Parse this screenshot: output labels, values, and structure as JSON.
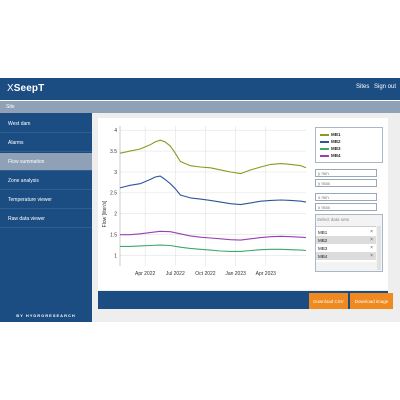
{
  "header": {
    "logo_prefix": "X",
    "logo_main": "SeepT",
    "nav": [
      {
        "label": "Sites"
      },
      {
        "label": "Sign out"
      }
    ]
  },
  "subheader": {
    "title": "Site"
  },
  "sidebar": {
    "items": [
      {
        "label": "West dam"
      },
      {
        "label": "Alarms"
      },
      {
        "label": "Flow summation",
        "active": true
      },
      {
        "label": "Zone analysis"
      },
      {
        "label": "Temperature viewer"
      },
      {
        "label": "Raw data viewer"
      }
    ],
    "brand": "BY HYDRORESEARCH"
  },
  "legend": {
    "items": [
      {
        "name": "MB1",
        "color": "#8a9a1e"
      },
      {
        "name": "MB2",
        "color": "#2f5597"
      },
      {
        "name": "MB3",
        "color": "#3fa86a"
      },
      {
        "name": "MB4",
        "color": "#9b3fb5"
      }
    ]
  },
  "controls": {
    "y_min_placeholder": "y min",
    "y_max_placeholder": "y max",
    "x_min_placeholder": "x min",
    "x_max_placeholder": "x max",
    "datasets_placeholder": "Select data sets",
    "selected": [
      {
        "name": "MB1",
        "remove": "×"
      },
      {
        "name": "MB2",
        "remove": "×",
        "highlighted": true
      },
      {
        "name": "MB3",
        "remove": "×"
      },
      {
        "name": "MB4",
        "remove": "×",
        "highlighted": true
      }
    ]
  },
  "actions": {
    "download_csv": "Download CSV",
    "download_image": "Download image"
  },
  "chart_data": {
    "type": "line",
    "ylabel": "Flow [liter/s]",
    "xlabel": "",
    "ylim": [
      0.75,
      4.1
    ],
    "xlim": [
      -2.5,
      16
    ],
    "yticks": [
      1,
      1.5,
      2,
      2.5,
      3,
      3.5,
      4
    ],
    "xticks": [
      {
        "x": 0,
        "label": "Apr 2022"
      },
      {
        "x": 3,
        "label": "Jul 2022"
      },
      {
        "x": 6,
        "label": "Oct 2022"
      },
      {
        "x": 9,
        "label": "Jan 2023"
      },
      {
        "x": 12,
        "label": "Apr 2023"
      }
    ],
    "grid": true,
    "series": [
      {
        "name": "MB1",
        "color": "#8a9a1e",
        "x": [
          -2.5,
          -1.5,
          -0.5,
          0.5,
          1.0,
          1.5,
          2.0,
          2.5,
          3.0,
          3.5,
          4.5,
          5.5,
          6.5,
          7.5,
          8.5,
          9.5,
          10.5,
          11.5,
          12.5,
          13.5,
          14.5,
          15.5,
          16
        ],
        "y": [
          3.45,
          3.5,
          3.55,
          3.65,
          3.72,
          3.76,
          3.72,
          3.62,
          3.45,
          3.25,
          3.15,
          3.12,
          3.1,
          3.05,
          3.0,
          2.96,
          3.05,
          3.12,
          3.18,
          3.2,
          3.18,
          3.15,
          3.1
        ]
      },
      {
        "name": "MB2",
        "color": "#2f5597",
        "x": [
          -2.5,
          -1.5,
          -0.5,
          0.5,
          1.0,
          1.5,
          2.0,
          2.5,
          3.0,
          3.5,
          4.5,
          5.5,
          6.5,
          7.5,
          8.5,
          9.5,
          10.5,
          11.5,
          12.5,
          13.5,
          14.5,
          15.5,
          16
        ],
        "y": [
          2.62,
          2.68,
          2.72,
          2.82,
          2.88,
          2.9,
          2.82,
          2.72,
          2.6,
          2.45,
          2.38,
          2.35,
          2.32,
          2.28,
          2.24,
          2.22,
          2.26,
          2.3,
          2.32,
          2.33,
          2.32,
          2.3,
          2.28
        ]
      },
      {
        "name": "MB4",
        "color": "#9b3fb5",
        "x": [
          -2.5,
          -1.5,
          -0.5,
          0.5,
          1.5,
          2.5,
          3.5,
          4.5,
          5.5,
          6.5,
          7.5,
          8.5,
          9.5,
          10.5,
          11.5,
          12.5,
          13.5,
          14.5,
          15.5,
          16
        ],
        "y": [
          1.5,
          1.5,
          1.52,
          1.55,
          1.58,
          1.57,
          1.52,
          1.47,
          1.44,
          1.42,
          1.4,
          1.38,
          1.37,
          1.4,
          1.43,
          1.45,
          1.46,
          1.45,
          1.44,
          1.43
        ]
      },
      {
        "name": "MB3",
        "color": "#3fa86a",
        "x": [
          -2.5,
          -1.5,
          -0.5,
          0.5,
          1.5,
          2.5,
          3.5,
          4.5,
          5.5,
          6.5,
          7.5,
          8.5,
          9.5,
          10.5,
          11.5,
          12.5,
          13.5,
          14.5,
          15.5,
          16
        ],
        "y": [
          1.22,
          1.22,
          1.23,
          1.24,
          1.25,
          1.24,
          1.2,
          1.17,
          1.15,
          1.13,
          1.11,
          1.1,
          1.1,
          1.12,
          1.14,
          1.15,
          1.15,
          1.14,
          1.13,
          1.12
        ]
      }
    ]
  }
}
